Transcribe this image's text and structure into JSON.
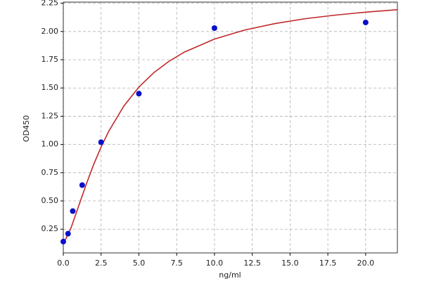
{
  "chart_data": {
    "type": "scatter",
    "xlabel": "ng/ml",
    "ylabel": "OD450",
    "xlim": [
      0,
      22.1
    ],
    "ylim": [
      0.04,
      2.26
    ],
    "xticks": [
      {
        "value": 0,
        "label": "0.0"
      },
      2.5,
      {
        "value": 5,
        "label": "5.0"
      },
      7.5,
      {
        "value": 10,
        "label": "10.0"
      },
      12.5,
      {
        "value": 15,
        "label": "15.0"
      },
      17.5,
      {
        "value": 20,
        "label": "20.0"
      }
    ],
    "yticks": [
      0.25,
      {
        "value": 0.5,
        "label": "0.50"
      },
      0.75,
      {
        "value": 1,
        "label": "1.00"
      },
      1.25,
      {
        "value": 1.5,
        "label": "1.50"
      },
      1.75,
      {
        "value": 2,
        "label": "2.00"
      },
      2.25
    ],
    "grid": true,
    "series": [
      {
        "type": "scatter",
        "color": "#0a10c8",
        "x": [
          0,
          0.3125,
          0.625,
          1.25,
          2.5,
          5,
          10,
          20
        ],
        "values": [
          0.14,
          0.21,
          0.41,
          0.64,
          1.02,
          1.45,
          2.03,
          2.08
        ]
      },
      {
        "type": "line",
        "color": "#c0282a",
        "x": [
          0,
          0.5,
          1,
          1.5,
          2,
          2.5,
          3,
          4,
          5,
          6,
          7,
          8,
          10,
          12,
          14,
          16,
          18,
          20,
          22.1
        ],
        "values": [
          0.12,
          0.257,
          0.449,
          0.641,
          0.82,
          0.977,
          1.115,
          1.339,
          1.508,
          1.637,
          1.737,
          1.817,
          1.933,
          2.013,
          2.07,
          2.113,
          2.145,
          2.171,
          2.193
        ]
      }
    ]
  }
}
